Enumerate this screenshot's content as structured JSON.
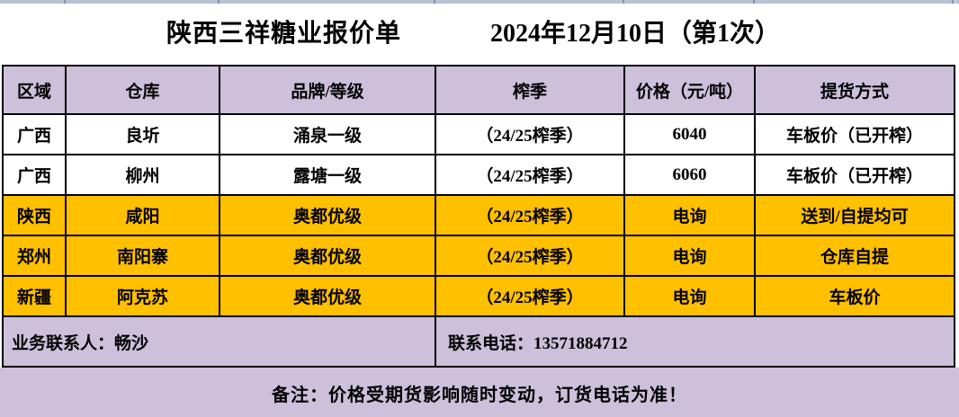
{
  "header": {
    "title": "陕西三祥糖业报价单",
    "date": "2024年12月10日（第1次）"
  },
  "table": {
    "columns": [
      "区域",
      "仓库",
      "品牌/等级",
      "榨季",
      "价格（元/吨）",
      "提货方式"
    ],
    "rows": [
      {
        "region": "广西",
        "warehouse": "良圻",
        "brand": "涌泉一级",
        "season": "（24/25榨季）",
        "price": "6040",
        "pickup": "车板价（已开榨）",
        "highlighted": false
      },
      {
        "region": "广西",
        "warehouse": "柳州",
        "brand": "露塘一级",
        "season": "（24/25榨季）",
        "price": "6060",
        "pickup": "车板价（已开榨）",
        "highlighted": false
      },
      {
        "region": "陕西",
        "warehouse": "咸阳",
        "brand": "奥都优级",
        "season": "（24/25榨季）",
        "price": "电询",
        "pickup": "送到/自提均可",
        "highlighted": true
      },
      {
        "region": "郑州",
        "warehouse": "南阳寨",
        "brand": "奥都优级",
        "season": "（24/25榨季）",
        "price": "电询",
        "pickup": "仓库自提",
        "highlighted": true
      },
      {
        "region": "新疆",
        "warehouse": "阿克苏",
        "brand": "奥都优级",
        "season": "（24/25榨季）",
        "price": "电询",
        "pickup": "车板价",
        "highlighted": true
      }
    ]
  },
  "footer": {
    "contact": "业务联系人：畅沙",
    "phone": "联系电话：13571884712",
    "remark": "备注：价格受期货影响随时变动，订货电话为准！"
  },
  "colors": {
    "header_fill": "#CCC0DA",
    "highlight_fill": "#FFC000",
    "strip_fill": "#B6C3D3",
    "border": "#000000"
  }
}
